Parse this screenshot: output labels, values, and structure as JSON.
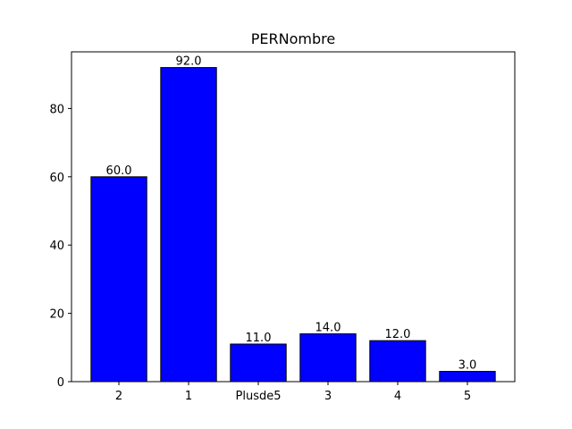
{
  "chart_data": {
    "type": "bar",
    "title": "PERNombre",
    "xlabel": "",
    "ylabel": "",
    "categories": [
      "2",
      "1",
      "Plusde5",
      "3",
      "4",
      "5"
    ],
    "values": [
      60.0,
      92.0,
      11.0,
      14.0,
      12.0,
      3.0
    ],
    "data_labels": [
      "60.0",
      "92.0",
      "11.0",
      "14.0",
      "12.0",
      "3.0"
    ],
    "ylim": [
      0,
      96.6
    ],
    "yticks": [
      0,
      20,
      40,
      60,
      80
    ],
    "ytick_labels": [
      "0",
      "20",
      "40",
      "60",
      "80"
    ],
    "bar_color": "#0000ff",
    "bar_edge_color": "#000000",
    "grid": false,
    "legend": "none"
  }
}
